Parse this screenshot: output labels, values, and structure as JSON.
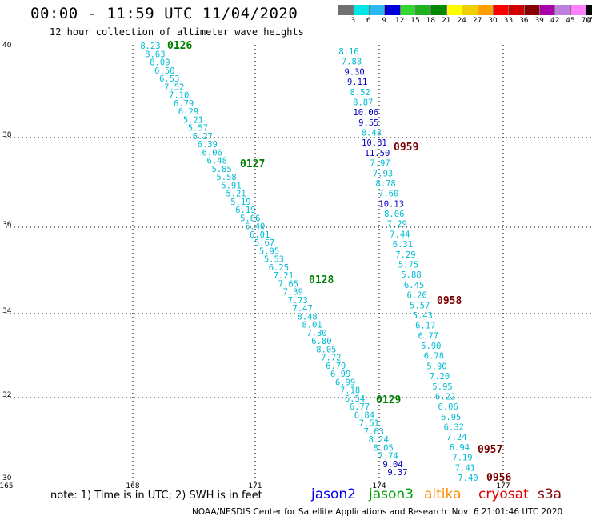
{
  "title": "00:00 - 11:59 UTC 11/04/2020",
  "subtitle": "12 hour collection of altimeter wave heights",
  "colorbar": {
    "labels": [
      "3",
      "6",
      "9",
      "12",
      "15",
      "18",
      "21",
      "24",
      "27",
      "30",
      "33",
      "36",
      "39",
      "42",
      "45",
      "70",
      "(ft)"
    ],
    "colors": [
      "#707070",
      "#00e6e6",
      "#2eb8f0",
      "#0000d8",
      "#30d830",
      "#20b020",
      "#008800",
      "#ffff00",
      "#f0d000",
      "#ffa000",
      "#ff0000",
      "#d00000",
      "#880000",
      "#aa00aa",
      "#c080e0",
      "#ff80ff",
      "#000000"
    ]
  },
  "axes": {
    "lat_labels": [
      "40",
      "38",
      "36",
      "34",
      "32",
      "30"
    ],
    "lon_labels": [
      "165",
      "168",
      "171",
      "174",
      "177"
    ]
  },
  "tracks": [
    {
      "values": [
        "8.23",
        "8.63",
        "8.09",
        "6.50",
        "6.53",
        "7.52",
        "7.10",
        "6.79",
        "6.29",
        "5.21",
        "5.57",
        "6.27",
        "6.39",
        "6.06",
        "6.48",
        "5.85",
        "5.58",
        "5.91",
        "5.21",
        "5.19",
        "6.19",
        "5.86",
        "6.40",
        "6.01",
        "5.67",
        "5.95",
        "5.53",
        "6.25",
        "7.21",
        "7.65",
        "7.39",
        "7.73",
        "7.47",
        "8.48",
        "8.01",
        "7.30",
        "6.80",
        "8.05",
        "7.72",
        "6.79",
        "6.99",
        "6.99",
        "7.18",
        "6.54",
        "6.77",
        "6.84",
        "7.51",
        "7.63",
        "8.24",
        "8.05",
        "7.74",
        "9.04",
        "9.37"
      ],
      "colors": [
        "c",
        "c",
        "c",
        "c",
        "c",
        "c",
        "c",
        "c",
        "c",
        "c",
        "c",
        "c",
        "c",
        "c",
        "c",
        "c",
        "c",
        "c",
        "c",
        "c",
        "c",
        "c",
        "c",
        "c",
        "c",
        "c",
        "c",
        "c",
        "c",
        "c",
        "c",
        "c",
        "c",
        "c",
        "c",
        "c",
        "c",
        "c",
        "c",
        "c",
        "c",
        "c",
        "c",
        "c",
        "c",
        "c",
        "c",
        "c",
        "c",
        "c",
        "c",
        "b",
        "b"
      ]
    },
    {
      "values": [
        "8.16",
        "7.88",
        "9.30",
        "9.11",
        "8.52",
        "8.87",
        "10.06",
        "9.55",
        "8.43",
        "10.81",
        "11.50",
        "7.97",
        "7.93",
        "8.78",
        "7.60",
        "10.13",
        "8.06",
        "7.29",
        "7.44",
        "6.31",
        "7.29",
        "5.75",
        "5.88",
        "6.45",
        "6.20",
        "5.57",
        "5.43",
        "6.17",
        "6.77",
        "5.90",
        "6.78",
        "5.90",
        "7.20",
        "5.95",
        "6.22",
        "6.06",
        "6.95",
        "6.32",
        "7.24",
        "6.94",
        "7.19",
        "7.41",
        "7.40"
      ],
      "colors": [
        "c",
        "c",
        "b",
        "b",
        "c",
        "c",
        "b",
        "b",
        "c",
        "b",
        "b",
        "c",
        "c",
        "c",
        "c",
        "b",
        "c",
        "c",
        "c",
        "c",
        "c",
        "c",
        "c",
        "c",
        "c",
        "c",
        "c",
        "c",
        "c",
        "c",
        "c",
        "c",
        "c",
        "c",
        "c",
        "c",
        "c",
        "c",
        "c",
        "c",
        "c",
        "c",
        "c"
      ]
    }
  ],
  "times": [
    {
      "label": "0126",
      "sat": "jason3"
    },
    {
      "label": "0127",
      "sat": "jason3"
    },
    {
      "label": "0128",
      "sat": "jason3"
    },
    {
      "label": "0129",
      "sat": "jason3"
    },
    {
      "label": "0959",
      "sat": "cryosat"
    },
    {
      "label": "0958",
      "sat": "cryosat"
    },
    {
      "label": "0957",
      "sat": "cryosat"
    },
    {
      "label": "0956",
      "sat": "cryosat"
    }
  ],
  "value_colors": {
    "c": "#00bcd4",
    "b": "#0000c0"
  },
  "note": "note: 1) Time is in UTC; 2) SWH is in feet",
  "satellites": [
    {
      "name": "jason2",
      "color": "#0000ee"
    },
    {
      "name": "jason3",
      "color": "#00a000"
    },
    {
      "name": "altika",
      "color": "#ff8c00"
    },
    {
      "name": "cryosat",
      "color": "#e00000"
    },
    {
      "name": "s3a",
      "color": "#8b0000"
    }
  ],
  "time_colors": {
    "jason3": "#008000",
    "cryosat": "#7a0000"
  },
  "credit": "NOAA/NESDIS Center for Satellite Applications and Research  Nov  6 21:01:46 UTC 2020"
}
